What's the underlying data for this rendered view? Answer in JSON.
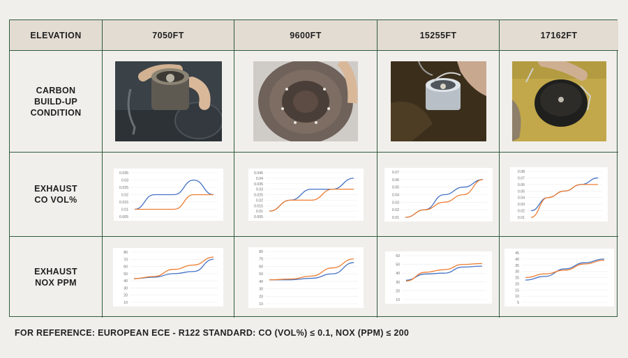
{
  "header": {
    "label": "ELEVATION",
    "elevations": [
      "7050FT",
      "9600FT",
      "15255FT",
      "17162FT"
    ]
  },
  "rows": {
    "carbon": "CARBON\nBUILD-UP\nCONDITION",
    "co": "EXHAUST\nCO VOL%",
    "nox": "EXHAUST\nNOX PPM"
  },
  "footer": "FOR REFERENCE: EUROPEAN ECE - R122 STANDARD: CO (VOL%) ≤ 0.1, NOX (PPM) ≤ 200",
  "colors": {
    "blue": "#4472c4",
    "orange": "#ed7d31",
    "border": "#2f5a3e",
    "header_bg": "#e3dcd3"
  },
  "chart_data": [
    {
      "type": "line",
      "metric": "co",
      "elevation": "7050FT",
      "yticks": [
        "0.035",
        "0.03",
        "0.025",
        "0.02",
        "0.015",
        "0.01",
        "0.005"
      ],
      "ylim": [
        0.005,
        0.035
      ],
      "series": [
        {
          "color": "#4472c4",
          "values": [
            0.01,
            0.02,
            0.02,
            0.03,
            0.02
          ]
        },
        {
          "color": "#ed7d31",
          "values": [
            0.01,
            0.01,
            0.01,
            0.02,
            0.02
          ]
        }
      ]
    },
    {
      "type": "line",
      "metric": "co",
      "elevation": "9600FT",
      "yticks": [
        "0.045",
        "0.04",
        "0.035",
        "0.03",
        "0.025",
        "0.02",
        "0.015",
        "0.01",
        "0.005"
      ],
      "ylim": [
        0.005,
        0.045
      ],
      "series": [
        {
          "color": "#4472c4",
          "values": [
            0.01,
            0.02,
            0.03,
            0.03,
            0.04
          ]
        },
        {
          "color": "#ed7d31",
          "values": [
            0.01,
            0.02,
            0.02,
            0.03,
            0.03
          ]
        }
      ]
    },
    {
      "type": "line",
      "metric": "co",
      "elevation": "15255FT",
      "yticks": [
        "0.07",
        "0.06",
        "0.05",
        "0.04",
        "0.03",
        "0.02",
        "0.01"
      ],
      "ylim": [
        0.01,
        0.07
      ],
      "series": [
        {
          "color": "#4472c4",
          "values": [
            0.01,
            0.02,
            0.04,
            0.05,
            0.06
          ]
        },
        {
          "color": "#ed7d31",
          "values": [
            0.01,
            0.02,
            0.03,
            0.04,
            0.06
          ]
        }
      ]
    },
    {
      "type": "line",
      "metric": "co",
      "elevation": "17162FT",
      "yticks": [
        "0.08",
        "0.07",
        "0.06",
        "0.05",
        "0.04",
        "0.03",
        "0.02",
        "0.01"
      ],
      "ylim": [
        0.01,
        0.08
      ],
      "series": [
        {
          "color": "#4472c4",
          "values": [
            0.02,
            0.04,
            0.05,
            0.06,
            0.07
          ]
        },
        {
          "color": "#ed7d31",
          "values": [
            0.01,
            0.04,
            0.05,
            0.06,
            0.06
          ]
        }
      ]
    },
    {
      "type": "line",
      "metric": "nox",
      "elevation": "7050FT",
      "yticks": [
        "80",
        "70",
        "60",
        "50",
        "40",
        "30",
        "20",
        "10"
      ],
      "ylim": [
        10,
        80
      ],
      "series": [
        {
          "color": "#4472c4",
          "values": [
            43,
            45,
            50,
            53,
            70
          ]
        },
        {
          "color": "#ed7d31",
          "values": [
            43,
            46,
            56,
            62,
            73
          ]
        }
      ]
    },
    {
      "type": "line",
      "metric": "nox",
      "elevation": "9600FT",
      "yticks": [
        "80",
        "70",
        "60",
        "50",
        "40",
        "30",
        "20",
        "10"
      ],
      "ylim": [
        10,
        80
      ],
      "series": [
        {
          "color": "#4472c4",
          "values": [
            42,
            42,
            44,
            50,
            65
          ]
        },
        {
          "color": "#ed7d31",
          "values": [
            42,
            43,
            47,
            58,
            70
          ]
        }
      ]
    },
    {
      "type": "line",
      "metric": "nox",
      "elevation": "15255FT",
      "yticks": [
        "60",
        "50",
        "40",
        "30",
        "20",
        "10"
      ],
      "ylim": [
        10,
        60
      ],
      "series": [
        {
          "color": "#4472c4",
          "values": [
            32,
            39,
            40,
            47,
            48
          ]
        },
        {
          "color": "#ed7d31",
          "values": [
            31,
            41,
            44,
            50,
            51
          ]
        }
      ]
    },
    {
      "type": "line",
      "metric": "nox",
      "elevation": "17162FT",
      "yticks": [
        "45",
        "40",
        "35",
        "30",
        "25",
        "20",
        "15",
        "10",
        "5"
      ],
      "ylim": [
        5,
        45
      ],
      "series": [
        {
          "color": "#4472c4",
          "values": [
            23,
            26,
            32,
            37,
            40
          ]
        },
        {
          "color": "#ed7d31",
          "values": [
            25,
            28,
            31,
            36,
            39
          ]
        }
      ]
    }
  ]
}
